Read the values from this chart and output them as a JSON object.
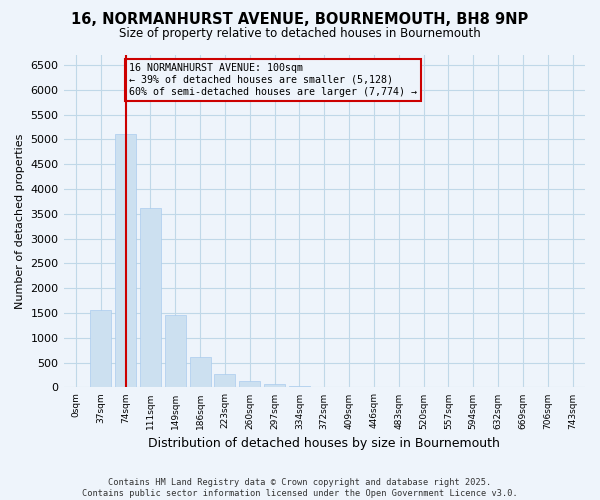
{
  "title": "16, NORMANHURST AVENUE, BOURNEMOUTH, BH8 9NP",
  "subtitle": "Size of property relative to detached houses in Bournemouth",
  "xlabel": "Distribution of detached houses by size in Bournemouth",
  "ylabel": "Number of detached properties",
  "bar_values": [
    0,
    1570,
    5110,
    3620,
    1450,
    620,
    280,
    130,
    60,
    30,
    15,
    10,
    5,
    3,
    2,
    1,
    1,
    0,
    0,
    0,
    0
  ],
  "categories": [
    "0sqm",
    "37sqm",
    "74sqm",
    "111sqm",
    "149sqm",
    "186sqm",
    "223sqm",
    "260sqm",
    "297sqm",
    "334sqm",
    "372sqm",
    "409sqm",
    "446sqm",
    "483sqm",
    "520sqm",
    "557sqm",
    "594sqm",
    "632sqm",
    "669sqm",
    "706sqm",
    "743sqm"
  ],
  "bar_color": "#cce0f0",
  "bar_edge_color": "#aaccee",
  "vline_x": 2,
  "vline_color": "#cc0000",
  "annotation_line1": "16 NORMANHURST AVENUE: 100sqm",
  "annotation_line2": "← 39% of detached houses are smaller (5,128)",
  "annotation_line3": "60% of semi-detached houses are larger (7,774) →",
  "ylim": [
    0,
    6700
  ],
  "yticks": [
    0,
    500,
    1000,
    1500,
    2000,
    2500,
    3000,
    3500,
    4000,
    4500,
    5000,
    5500,
    6000,
    6500
  ],
  "footer_line1": "Contains HM Land Registry data © Crown copyright and database right 2025.",
  "footer_line2": "Contains public sector information licensed under the Open Government Licence v3.0.",
  "bg_color": "#eef4fb",
  "grid_color": "#c0d8e8"
}
